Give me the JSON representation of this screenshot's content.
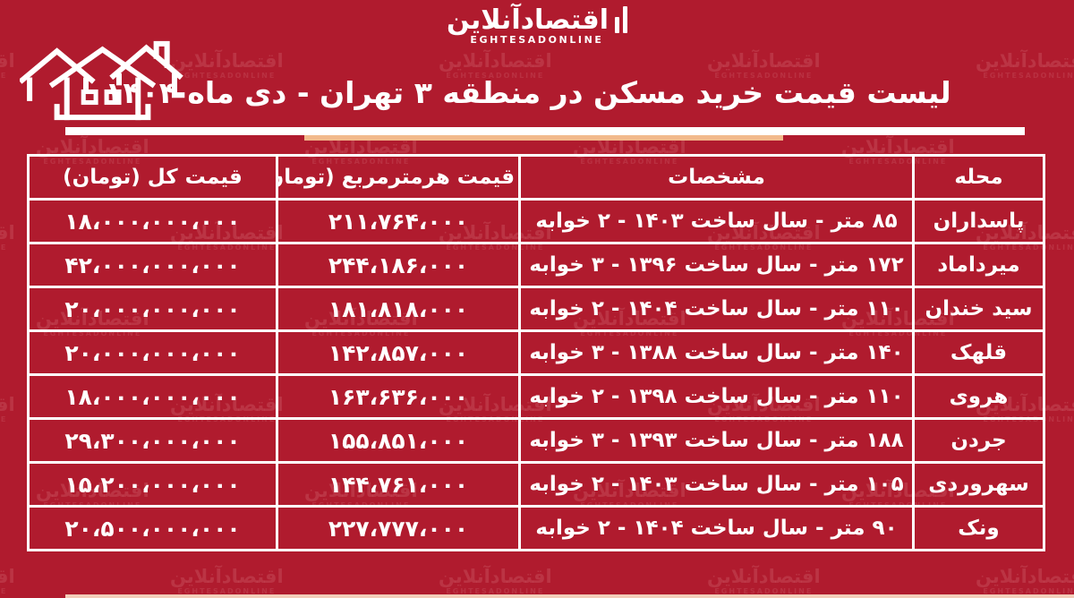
{
  "page": {
    "bg_color": "#b01b2e",
    "border_color": "#ffffff",
    "accent_color": "#f2ba8c"
  },
  "logo": {
    "fa": "اقتصادآنلاین",
    "en": "EGHTESADONLINE"
  },
  "watermark": {
    "fa": "اقتصادآنلاین",
    "en": "EGHTESADONLINE"
  },
  "header": {
    "title": "لیست قیمت خرید مسکن در منطقه ۳ تهران - دی ماه ۱۴۰۴"
  },
  "table": {
    "headers": {
      "neighborhood": "محله",
      "specs": "مشخصات",
      "price_per_meter": "قیمت هرمترمربع (تومان)",
      "total_price": "قیمت کل (تومان)"
    },
    "rows": [
      {
        "neighborhood": "پاسداران",
        "specs": "۸۵ متر - سال ساخت ۱۴۰۳ - ۲ خوابه",
        "price_per_meter": "۲۱۱،۷۶۴،۰۰۰",
        "total_price": "۱۸،۰۰۰،۰۰۰،۰۰۰"
      },
      {
        "neighborhood": "میرداماد",
        "specs": "۱۷۲ متر - سال ساخت ۱۳۹۶ - ۳ خوابه",
        "price_per_meter": "۲۴۴،۱۸۶،۰۰۰",
        "total_price": "۴۲،۰۰۰،۰۰۰،۰۰۰"
      },
      {
        "neighborhood": "سید خندان",
        "specs": "۱۱۰ متر - سال ساخت ۱۴۰۴ - ۲ خوابه",
        "price_per_meter": "۱۸۱،۸۱۸،۰۰۰",
        "total_price": "۲۰،۰۰۰،۰۰۰،۰۰۰"
      },
      {
        "neighborhood": "قلهک",
        "specs": "۱۴۰ متر - سال ساخت ۱۳۸۸ - ۳ خوابه",
        "price_per_meter": "۱۴۲،۸۵۷،۰۰۰",
        "total_price": "۲۰،۰۰۰،۰۰۰،۰۰۰"
      },
      {
        "neighborhood": "هروی",
        "specs": "۱۱۰ متر - سال ساخت ۱۳۹۸ - ۲ خوابه",
        "price_per_meter": "۱۶۳،۶۳۶،۰۰۰",
        "total_price": "۱۸،۰۰۰،۰۰۰،۰۰۰"
      },
      {
        "neighborhood": "جردن",
        "specs": "۱۸۸ متر - سال ساخت ۱۳۹۳ - ۳ خوابه",
        "price_per_meter": "۱۵۵،۸۵۱،۰۰۰",
        "total_price": "۲۹،۳۰۰،۰۰۰،۰۰۰"
      },
      {
        "neighborhood": "سهروردی",
        "specs": "۱۰۵ متر - سال ساخت ۱۴۰۳ - ۲ خوابه",
        "price_per_meter": "۱۴۴،۷۶۱،۰۰۰",
        "total_price": "۱۵،۲۰۰،۰۰۰،۰۰۰"
      },
      {
        "neighborhood": "ونک",
        "specs": "۹۰ متر - سال ساخت ۱۴۰۴ - ۲ خوابه",
        "price_per_meter": "۲۲۷،۷۷۷،۰۰۰",
        "total_price": "۲۰،۵۰۰،۰۰۰،۰۰۰"
      }
    ]
  },
  "chart_data": {
    "type": "table",
    "title": "لیست قیمت خرید مسکن در منطقه ۳ تهران - دی ماه ۱۴۰۴",
    "columns": [
      "محله",
      "مشخصات",
      "قیمت هرمترمربع (تومان)",
      "قیمت کل (تومان)"
    ],
    "rows": [
      {
        "neighborhood": "پاسداران",
        "area_m2": 85,
        "year_built": 1403,
        "bedrooms": 2,
        "price_per_m2_toman": 211764000,
        "total_price_toman": 18000000000
      },
      {
        "neighborhood": "میرداماد",
        "area_m2": 172,
        "year_built": 1396,
        "bedrooms": 3,
        "price_per_m2_toman": 244186000,
        "total_price_toman": 42000000000
      },
      {
        "neighborhood": "سید خندان",
        "area_m2": 110,
        "year_built": 1404,
        "bedrooms": 2,
        "price_per_m2_toman": 181818000,
        "total_price_toman": 20000000000
      },
      {
        "neighborhood": "قلهک",
        "area_m2": 140,
        "year_built": 1388,
        "bedrooms": 3,
        "price_per_m2_toman": 142857000,
        "total_price_toman": 20000000000
      },
      {
        "neighborhood": "هروی",
        "area_m2": 110,
        "year_built": 1398,
        "bedrooms": 2,
        "price_per_m2_toman": 163636000,
        "total_price_toman": 18000000000
      },
      {
        "neighborhood": "جردن",
        "area_m2": 188,
        "year_built": 1393,
        "bedrooms": 3,
        "price_per_m2_toman": 155851000,
        "total_price_toman": 29300000000
      },
      {
        "neighborhood": "سهروردی",
        "area_m2": 105,
        "year_built": 1403,
        "bedrooms": 2,
        "price_per_m2_toman": 144761000,
        "total_price_toman": 15200000000
      },
      {
        "neighborhood": "ونک",
        "area_m2": 90,
        "year_built": 1404,
        "bedrooms": 2,
        "price_per_m2_toman": 227777000,
        "total_price_toman": 20500000000
      }
    ]
  }
}
